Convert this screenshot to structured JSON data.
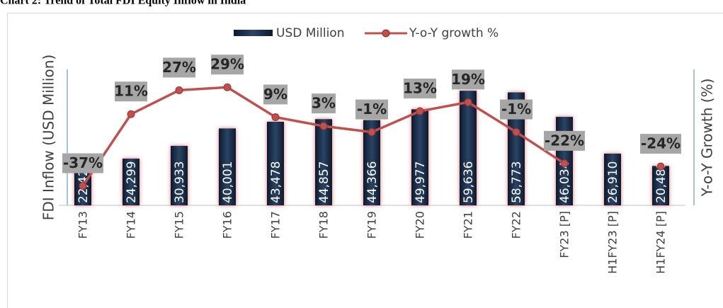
{
  "title": "Chart 2: Trend of Total FDI Equity Inflow in India",
  "chart_data": {
    "type": "bar-line",
    "categories": [
      "FY13",
      "FY14",
      "FY15",
      "FY16",
      "FY17",
      "FY18",
      "FY19",
      "FY20",
      "FY21",
      "FY22",
      "FY23 [P]",
      "H1FY23 [P]",
      "H1FY24 [P]"
    ],
    "series": [
      {
        "name": "USD Million",
        "type": "bar",
        "color": "#1b2e4b",
        "values": [
          22423,
          24299,
          30933,
          40001,
          43478,
          44857,
          44366,
          49977,
          59636,
          58773,
          46034,
          26910,
          20481
        ],
        "value_labels": [
          "22,423",
          "24,299",
          "30,933",
          "40,001",
          "43,478",
          "44,857",
          "44,366",
          "49,977",
          "59,636",
          "58,773",
          "46,034",
          "26,910",
          "20,481"
        ]
      },
      {
        "name": "Y-o-Y growth %",
        "type": "line",
        "axis": "y2",
        "color": "#c0504d",
        "values": [
          -37,
          11,
          27,
          29,
          9,
          3,
          -1,
          13,
          19,
          -1,
          -22,
          null,
          -24
        ],
        "value_labels": [
          "-37%",
          "11%",
          "27%",
          "29%",
          "9%",
          "3%",
          "-1%",
          "13%",
          "19%",
          "-1%",
          "-22%",
          null,
          "-24%"
        ]
      }
    ],
    "ylabel": "FDI Inflow (USD Million)",
    "y2label": "Y-o-Y Growth (%)",
    "ylim": [
      0,
      70000
    ],
    "y2lim": [
      -50,
      40
    ],
    "legend": "top"
  }
}
